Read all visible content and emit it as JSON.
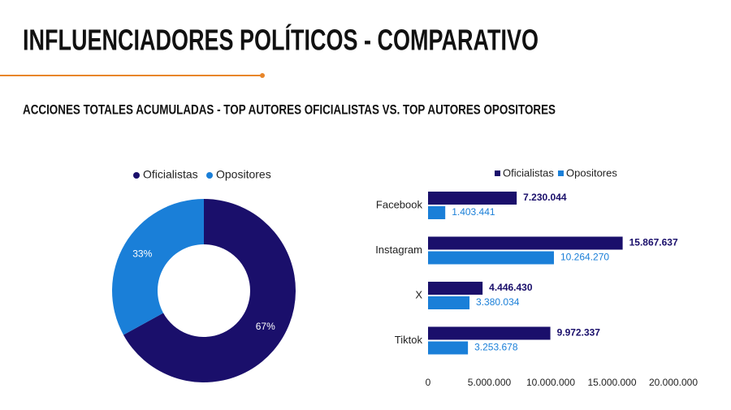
{
  "header": {
    "title": "INFLUENCIADORES POLÍTICOS - COMPARATIVO",
    "subtitle": "ACCIONES TOTALES ACUMULADAS -  TOP AUTORES OFICIALISTAS VS. TOP AUTORES OPOSITORES"
  },
  "chart_data": [
    {
      "type": "donut",
      "categories": [
        "Oficialistas",
        "Opositores"
      ],
      "values": [
        67,
        33
      ],
      "value_labels": [
        "67%",
        "33%"
      ],
      "colors": [
        "#1a0f6b",
        "#1a7fd8"
      ],
      "legend": "top"
    },
    {
      "type": "hbar",
      "categories": [
        "Facebook",
        "Instagram",
        "X",
        "Tiktok"
      ],
      "series": [
        {
          "name": "Oficialistas",
          "color": "#1a0f6b",
          "values": [
            7230044,
            15867637,
            4446430,
            9972337
          ],
          "value_labels": [
            "7.230.044",
            "15.867.637",
            "4.446.430",
            "9.972.337"
          ]
        },
        {
          "name": "Opositores",
          "color": "#1a7fd8",
          "values": [
            1403441,
            10264270,
            3380034,
            3253678
          ],
          "value_labels": [
            "1.403.441",
            "10.264.270",
            "3.380.034",
            "3.253.678"
          ]
        }
      ],
      "xlim": [
        0,
        20000000
      ],
      "xticks": [
        0,
        {
          "value": 5000000,
          "label": "5.000.000"
        },
        {
          "value": 10000000,
          "label": "10.000.000"
        },
        {
          "value": 15000000,
          "label": "15.000.000"
        },
        {
          "value": 20000000,
          "label": "20.000.000"
        }
      ],
      "legend": "top"
    }
  ]
}
